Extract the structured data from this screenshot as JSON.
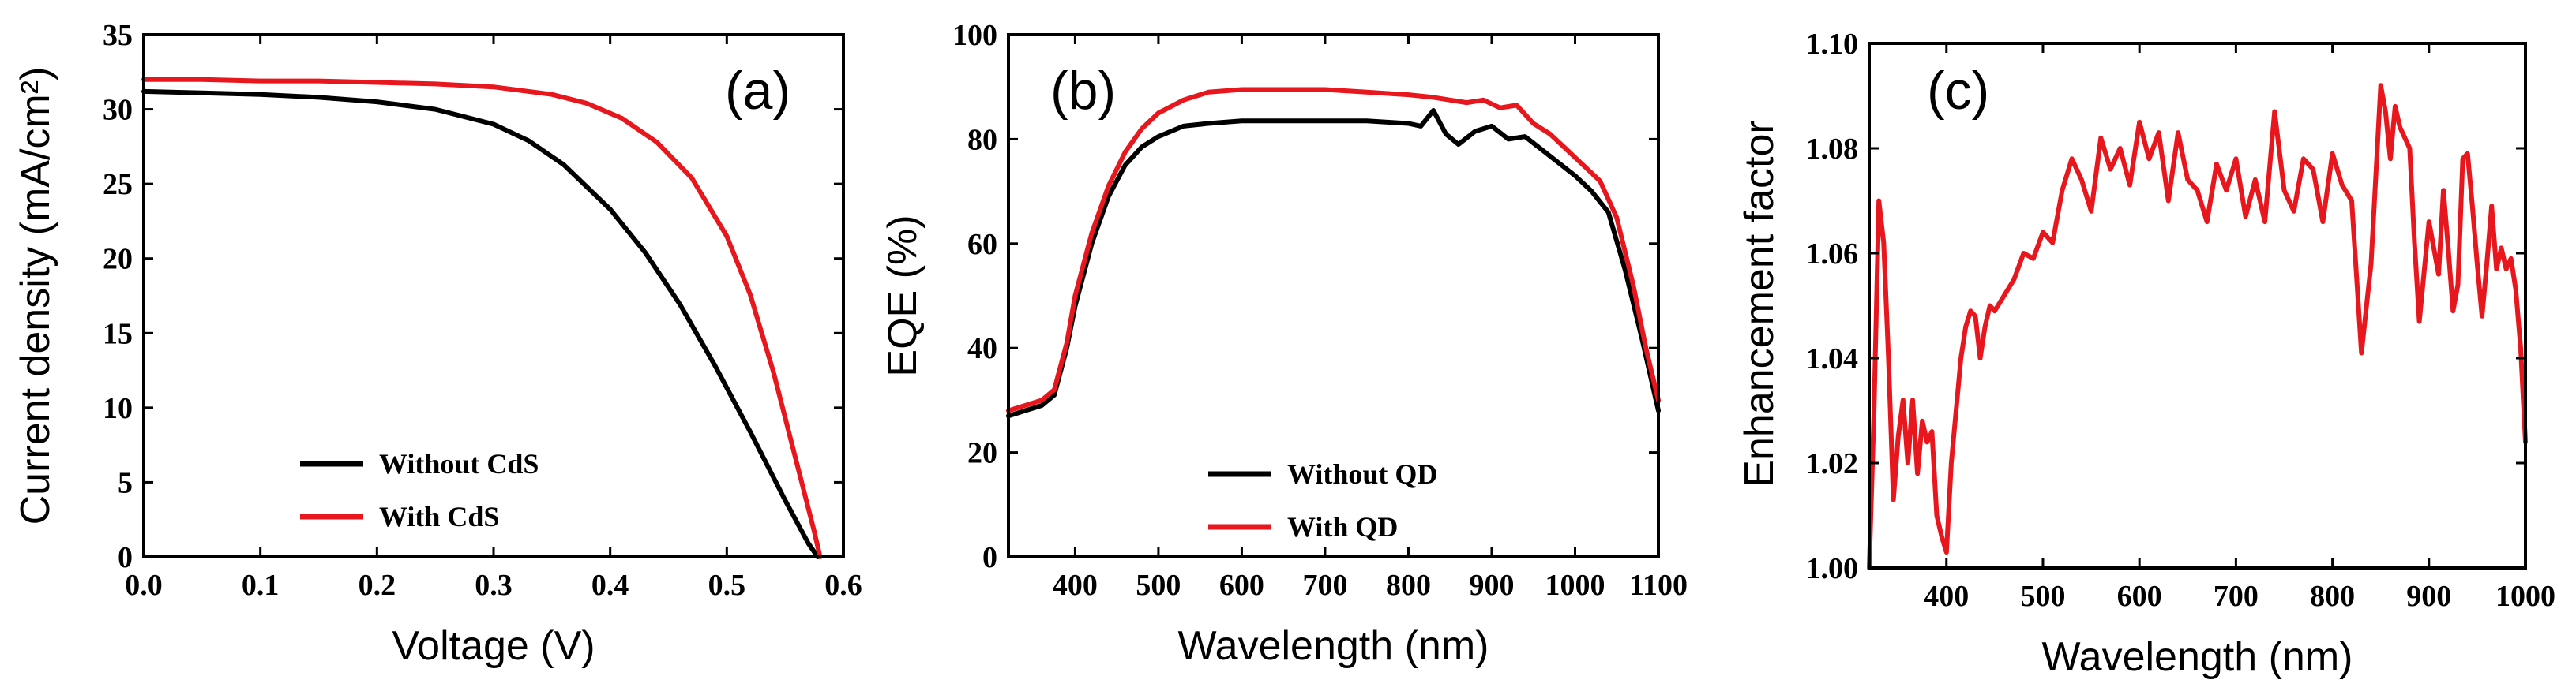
{
  "chart_data": [
    {
      "type": "line",
      "panel_label": "(a)",
      "xlabel": "Voltage (V)",
      "ylabel": "Current density (mA/cm²)",
      "xlim": [
        0,
        0.6
      ],
      "ylim": [
        0,
        35
      ],
      "xticks": [
        "0.0",
        "0.1",
        "0.2",
        "0.3",
        "0.4",
        "0.5",
        "0.6"
      ],
      "yticks": [
        "0",
        "5",
        "10",
        "15",
        "20",
        "25",
        "30",
        "35"
      ],
      "legend_position": "bottom-center",
      "series": [
        {
          "name": "Without CdS",
          "color": "#000000",
          "x": [
            0,
            0.05,
            0.1,
            0.15,
            0.2,
            0.25,
            0.3,
            0.33,
            0.36,
            0.4,
            0.43,
            0.46,
            0.49,
            0.52,
            0.55,
            0.57,
            0.578
          ],
          "y": [
            31.2,
            31.1,
            31.0,
            30.8,
            30.5,
            30.0,
            29.0,
            27.9,
            26.3,
            23.3,
            20.4,
            16.9,
            12.8,
            8.4,
            3.8,
            0.9,
            0
          ]
        },
        {
          "name": "With CdS",
          "color": "#e8161d",
          "x": [
            0,
            0.05,
            0.1,
            0.15,
            0.2,
            0.25,
            0.3,
            0.35,
            0.38,
            0.41,
            0.44,
            0.47,
            0.5,
            0.52,
            0.54,
            0.56,
            0.575,
            0.58
          ],
          "y": [
            32.0,
            32.0,
            31.9,
            31.9,
            31.8,
            31.7,
            31.5,
            31.0,
            30.4,
            29.4,
            27.8,
            25.4,
            21.5,
            17.6,
            12.4,
            6.3,
            1.7,
            0
          ]
        }
      ]
    },
    {
      "type": "line",
      "panel_label": "(b)",
      "xlabel": "Wavelength (nm)",
      "ylabel": "EQE (%)",
      "xlim": [
        320,
        1100
      ],
      "ylim": [
        0,
        100
      ],
      "xticks": [
        "400",
        "500",
        "600",
        "700",
        "800",
        "900",
        "1000",
        "1100"
      ],
      "yticks": [
        "0",
        "20",
        "40",
        "60",
        "80",
        "100"
      ],
      "legend_position": "bottom-center",
      "series": [
        {
          "name": "Without QD",
          "color": "#000000",
          "x": [
            320,
            340,
            360,
            375,
            390,
            400,
            420,
            440,
            460,
            480,
            500,
            530,
            560,
            600,
            650,
            700,
            750,
            800,
            815,
            830,
            845,
            860,
            880,
            900,
            920,
            940,
            960,
            980,
            1000,
            1020,
            1040,
            1060,
            1080,
            1100
          ],
          "y": [
            27,
            28,
            29,
            31,
            40,
            48,
            60,
            69,
            75,
            78.5,
            80.5,
            82.5,
            83,
            83.5,
            83.5,
            83.5,
            83.5,
            83,
            82.5,
            85.5,
            81,
            79,
            81.5,
            82.5,
            80,
            80.5,
            78,
            75.5,
            73,
            70,
            66,
            55,
            42,
            28
          ]
        },
        {
          "name": "With QD",
          "color": "#e8161d",
          "x": [
            320,
            340,
            360,
            375,
            390,
            400,
            420,
            440,
            460,
            480,
            500,
            530,
            560,
            600,
            650,
            700,
            750,
            800,
            830,
            850,
            870,
            890,
            910,
            930,
            950,
            970,
            990,
            1010,
            1030,
            1050,
            1070,
            1085,
            1100
          ],
          "y": [
            28,
            29,
            30,
            32,
            41,
            50,
            62,
            71,
            77.5,
            82,
            85,
            87.5,
            89,
            89.5,
            89.5,
            89.5,
            89,
            88.5,
            88,
            87.5,
            87,
            87.5,
            86,
            86.5,
            83,
            81,
            78,
            75,
            72,
            65,
            52,
            40,
            30
          ]
        }
      ]
    },
    {
      "type": "line",
      "panel_label": "(c)",
      "xlabel": "Wavelength (nm)",
      "ylabel": "Enhancement factor",
      "xlim": [
        320,
        1000
      ],
      "ylim": [
        1.0,
        1.1
      ],
      "xticks": [
        "400",
        "500",
        "600",
        "700",
        "800",
        "900",
        "1000"
      ],
      "yticks": [
        "1.00",
        "1.02",
        "1.04",
        "1.06",
        "1.08",
        "1.10"
      ],
      "legend_position": "none",
      "series": [
        {
          "name": "Enhancement factor",
          "color": "#e8161d",
          "x": [
            320,
            325,
            330,
            335,
            340,
            345,
            350,
            355,
            360,
            365,
            370,
            375,
            380,
            385,
            390,
            395,
            400,
            405,
            410,
            415,
            420,
            425,
            430,
            435,
            440,
            445,
            450,
            460,
            470,
            480,
            490,
            500,
            510,
            520,
            530,
            540,
            550,
            560,
            570,
            580,
            590,
            600,
            610,
            620,
            630,
            640,
            650,
            660,
            670,
            680,
            690,
            700,
            710,
            720,
            730,
            740,
            750,
            760,
            770,
            780,
            790,
            800,
            810,
            820,
            830,
            840,
            850,
            855,
            860,
            865,
            870,
            880,
            885,
            890,
            900,
            910,
            915,
            920,
            925,
            930,
            935,
            940,
            945,
            950,
            955,
            960,
            965,
            970,
            975,
            980,
            985,
            990,
            995,
            1000
          ],
          "y": [
            1.0,
            1.03,
            1.07,
            1.062,
            1.04,
            1.013,
            1.025,
            1.032,
            1.02,
            1.032,
            1.018,
            1.028,
            1.024,
            1.026,
            1.01,
            1.006,
            1.003,
            1.02,
            1.03,
            1.04,
            1.046,
            1.049,
            1.048,
            1.04,
            1.046,
            1.05,
            1.049,
            1.052,
            1.055,
            1.06,
            1.059,
            1.064,
            1.062,
            1.072,
            1.078,
            1.074,
            1.068,
            1.082,
            1.076,
            1.08,
            1.073,
            1.085,
            1.078,
            1.083,
            1.07,
            1.083,
            1.074,
            1.072,
            1.066,
            1.077,
            1.072,
            1.078,
            1.067,
            1.074,
            1.066,
            1.087,
            1.072,
            1.068,
            1.078,
            1.076,
            1.066,
            1.079,
            1.073,
            1.07,
            1.041,
            1.058,
            1.092,
            1.087,
            1.078,
            1.088,
            1.084,
            1.08,
            1.062,
            1.047,
            1.066,
            1.056,
            1.072,
            1.061,
            1.049,
            1.054,
            1.078,
            1.079,
            1.069,
            1.058,
            1.048,
            1.058,
            1.069,
            1.057,
            1.061,
            1.057,
            1.059,
            1.053,
            1.042,
            1.024
          ]
        }
      ]
    }
  ]
}
